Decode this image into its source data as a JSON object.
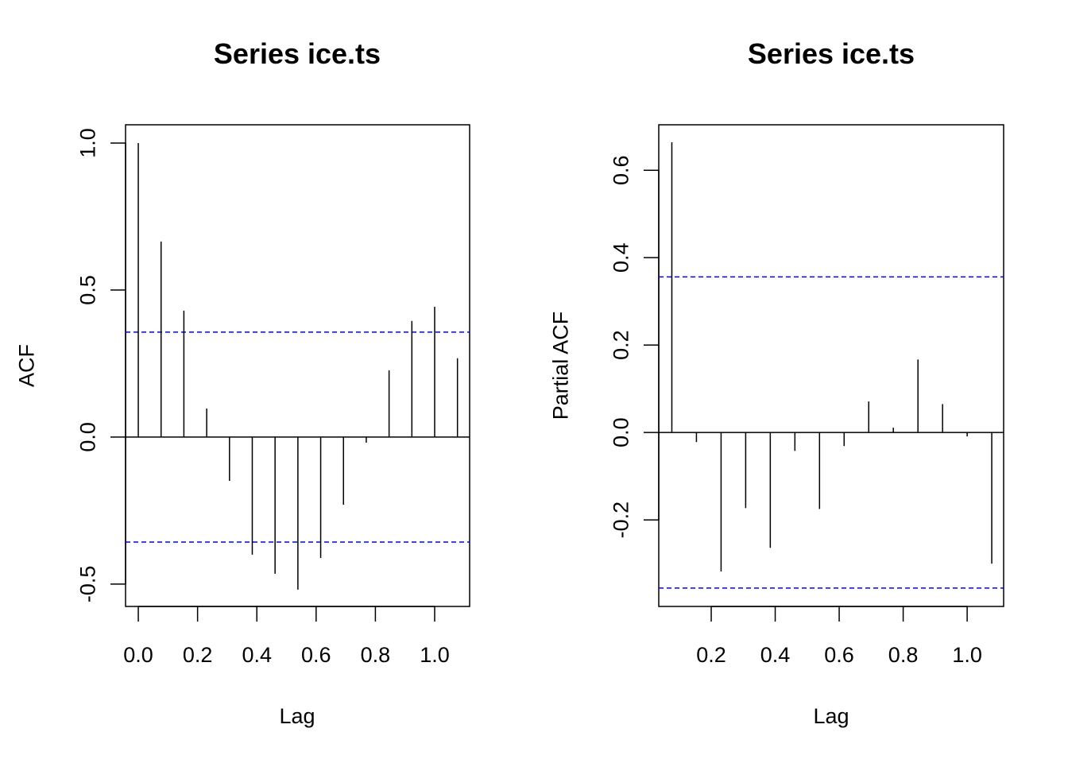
{
  "chart_data": [
    {
      "type": "bar",
      "subtype": "acf-stem",
      "title": "Series  ice.ts",
      "xlabel": "Lag",
      "ylabel": "ACF",
      "xlim": [
        -0.043,
        1.118
      ],
      "ylim": [
        -0.576,
        1.062
      ],
      "xticks": [
        0.0,
        0.2,
        0.4,
        0.6,
        0.8,
        1.0
      ],
      "xtick_labels": [
        "0.0",
        "0.2",
        "0.4",
        "0.6",
        "0.8",
        "1.0"
      ],
      "yticks": [
        -0.5,
        0.0,
        0.5,
        1.0
      ],
      "ytick_labels": [
        "-0.5",
        "0.0",
        "0.5",
        "1.0"
      ],
      "x": [
        0.0,
        0.0769,
        0.1538,
        0.2308,
        0.3077,
        0.3846,
        0.4615,
        0.5385,
        0.6154,
        0.6923,
        0.7692,
        0.8462,
        0.9231,
        1.0,
        1.0769
      ],
      "values": [
        1.0,
        0.665,
        0.43,
        0.097,
        -0.149,
        -0.4,
        -0.465,
        -0.519,
        -0.411,
        -0.23,
        -0.019,
        0.227,
        0.395,
        0.443,
        0.268
      ],
      "ci": 0.357,
      "ci_color": "#0000ff"
    },
    {
      "type": "bar",
      "subtype": "pacf-stem",
      "title": "Series  ice.ts",
      "xlabel": "Lag",
      "ylabel": "Partial ACF",
      "xlim": [
        0.036,
        1.114
      ],
      "ylim": [
        -0.398,
        0.704
      ],
      "xticks": [
        0.2,
        0.4,
        0.6,
        0.8,
        1.0
      ],
      "xtick_labels": [
        "0.2",
        "0.4",
        "0.6",
        "0.8",
        "1.0"
      ],
      "yticks": [
        -0.2,
        0.0,
        0.2,
        0.4,
        0.6
      ],
      "ytick_labels": [
        "-0.2",
        "0.0",
        "0.2",
        "0.4",
        "0.6"
      ],
      "x": [
        0.0769,
        0.1538,
        0.2308,
        0.3077,
        0.3846,
        0.4615,
        0.5385,
        0.6154,
        0.6923,
        0.7692,
        0.8462,
        0.9231,
        1.0,
        1.0769
      ],
      "values": [
        0.664,
        -0.022,
        -0.318,
        -0.173,
        -0.264,
        -0.042,
        -0.175,
        -0.031,
        0.071,
        0.011,
        0.167,
        0.065,
        -0.009,
        -0.3
      ],
      "ci": 0.356,
      "ci_color": "#0000ff"
    }
  ]
}
